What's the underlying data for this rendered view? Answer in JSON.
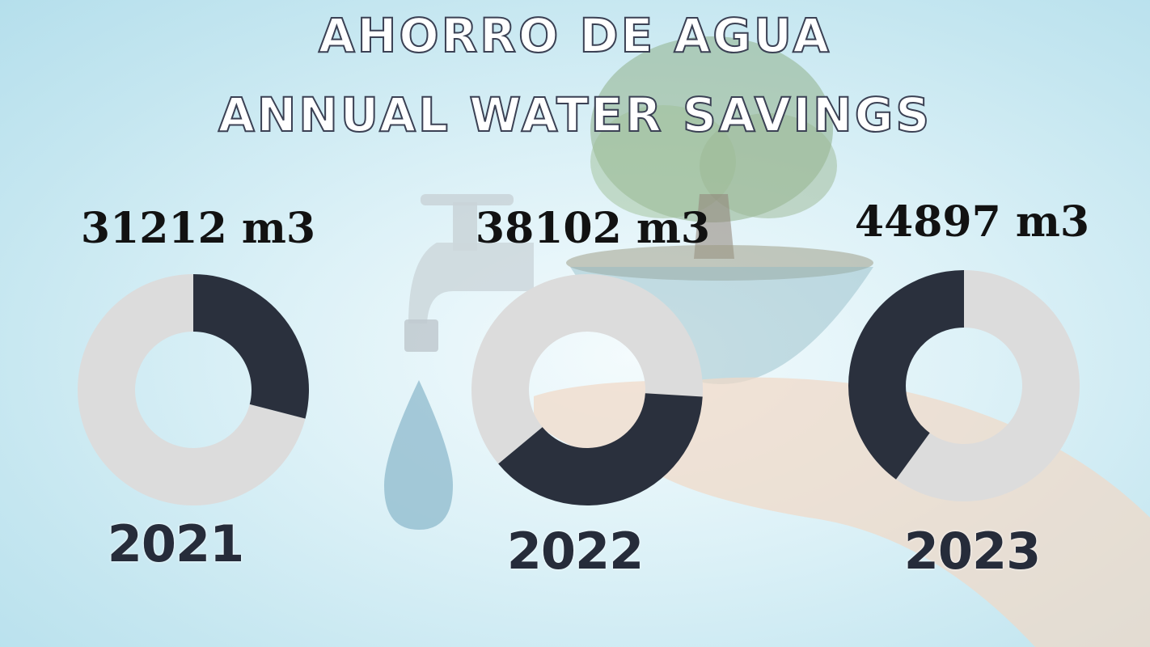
{
  "title_es": "AHORRO DE AGUA",
  "title_en": "ANNUAL WATER SAVINGS",
  "colors": {
    "filled": "#2a303d",
    "remaining": "#dcdcdc"
  },
  "chart_data": {
    "type": "pie",
    "title": "ANNUAL WATER SAVINGS",
    "categories": [
      "2021",
      "2022",
      "2023"
    ],
    "values": [
      31212,
      38102,
      44897
    ],
    "value_labels": [
      "31212 m3",
      "38102 m3",
      "44897 m3"
    ],
    "unit": "m3",
    "filled_fraction": [
      0.29,
      0.38,
      0.4
    ]
  }
}
